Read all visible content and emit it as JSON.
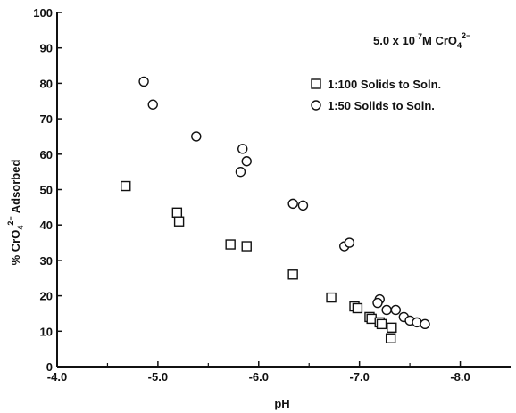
{
  "chart_data": {
    "type": "scatter",
    "title": "",
    "annotation": {
      "prefix": "5.0 x 10",
      "exp": "-7",
      "suffix": "M CrO",
      "sub": "4",
      "sup": "2−"
    },
    "xlabel": "pH",
    "ylabel": {
      "prefix": "% CrO",
      "sub": "4",
      "sup": "2−",
      "suffix": " Adsorbed"
    },
    "xlim": [
      -4.0,
      -8.5
    ],
    "ylim": [
      0,
      100
    ],
    "xticks": [
      "-4.0",
      "-5.0",
      "-6.0",
      "-7.0",
      "-8.0"
    ],
    "xtick_values": [
      -4.0,
      -5.0,
      -6.0,
      -7.0,
      -8.0
    ],
    "yticks": [
      "0",
      "10",
      "20",
      "30",
      "40",
      "50",
      "60",
      "70",
      "80",
      "90",
      "100"
    ],
    "ytick_values": [
      0,
      10,
      20,
      30,
      40,
      50,
      60,
      70,
      80,
      90,
      100
    ],
    "grid": false,
    "legend_position": "top-right",
    "series": [
      {
        "name": "1:100 Solids to Soln.",
        "marker": "square",
        "points": [
          [
            -4.68,
            51
          ],
          [
            -5.19,
            43.5
          ],
          [
            -5.21,
            41
          ],
          [
            -5.72,
            34.5
          ],
          [
            -5.88,
            34
          ],
          [
            -6.34,
            26
          ],
          [
            -6.72,
            19.5
          ],
          [
            -6.95,
            17
          ],
          [
            -6.98,
            16.5
          ],
          [
            -7.1,
            14
          ],
          [
            -7.12,
            13.5
          ],
          [
            -7.2,
            12.5
          ],
          [
            -7.22,
            12
          ],
          [
            -7.32,
            11
          ],
          [
            -7.31,
            8
          ]
        ]
      },
      {
        "name": "1:50 Solids to Soln.",
        "marker": "circle",
        "points": [
          [
            -4.86,
            80.5
          ],
          [
            -4.95,
            74
          ],
          [
            -5.38,
            65
          ],
          [
            -5.84,
            61.5
          ],
          [
            -5.88,
            58
          ],
          [
            -5.82,
            55
          ],
          [
            -6.34,
            46
          ],
          [
            -6.44,
            45.5
          ],
          [
            -6.85,
            34
          ],
          [
            -6.9,
            35
          ],
          [
            -7.2,
            19
          ],
          [
            -7.18,
            18
          ],
          [
            -7.27,
            16
          ],
          [
            -7.36,
            16
          ],
          [
            -7.44,
            14
          ],
          [
            -7.5,
            13
          ],
          [
            -7.57,
            12.5
          ],
          [
            -7.65,
            12
          ]
        ]
      }
    ]
  }
}
